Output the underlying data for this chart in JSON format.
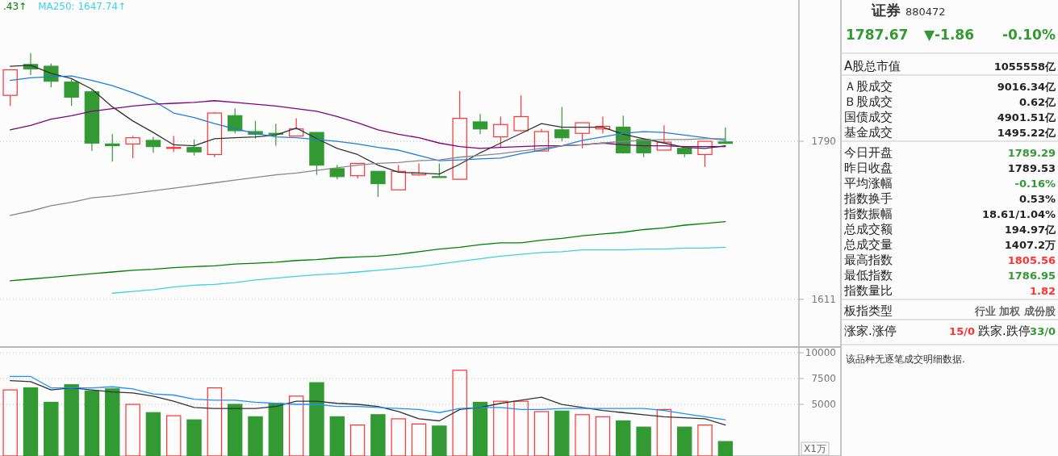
{
  "chart_data": [
    {
      "type": "candlestick",
      "categories": [
        null,
        null,
        null,
        null,
        null,
        null,
        null,
        null,
        null,
        null,
        null,
        null,
        null,
        null,
        null,
        null,
        null,
        null,
        null,
        null,
        null,
        null,
        null,
        null,
        null,
        null,
        null,
        null,
        null,
        null,
        null,
        null,
        null,
        null,
        null,
        null
      ],
      "ohlc": [
        [
          1842,
          1871,
          1830,
          1871
        ],
        [
          1877,
          1890,
          1865,
          1872
        ],
        [
          1875,
          1878,
          1851,
          1858
        ],
        [
          1857,
          1860,
          1830,
          1840
        ],
        [
          1846,
          1848,
          1779,
          1788
        ],
        [
          1787,
          1798,
          1767,
          1785
        ],
        [
          1787,
          1796,
          1771,
          1794
        ],
        [
          1791,
          1795,
          1777,
          1784
        ],
        [
          1782,
          1796,
          1778,
          1783
        ],
        [
          1783,
          1792,
          1774,
          1778
        ],
        [
          1775,
          1823,
          1772,
          1822
        ],
        [
          1819,
          1827,
          1799,
          1802
        ],
        [
          1801,
          1813,
          1793,
          1798
        ],
        [
          1799,
          1810,
          1785,
          1798
        ],
        [
          1796,
          1816,
          1796,
          1804
        ],
        [
          1800,
          1800,
          1752,
          1763
        ],
        [
          1759,
          1763,
          1747,
          1750
        ],
        [
          1751,
          1765,
          1748,
          1765
        ],
        [
          1756,
          1756,
          1727,
          1742
        ],
        [
          1735,
          1763,
          1735,
          1756
        ],
        [
          1752,
          1765,
          1751,
          1754
        ],
        [
          1750,
          1765,
          1749,
          1749
        ],
        [
          1747,
          1847,
          1747,
          1816
        ],
        [
          1812,
          1821,
          1798,
          1804
        ],
        [
          1795,
          1818,
          1783,
          1809
        ],
        [
          1802,
          1842,
          1801,
          1818
        ],
        [
          1779,
          1804,
          1779,
          1801
        ],
        [
          1803,
          1829,
          1790,
          1794
        ],
        [
          1799,
          1811,
          1782,
          1811
        ],
        [
          1804,
          1818,
          1799,
          1807
        ],
        [
          1806,
          1819,
          1776,
          1777
        ],
        [
          1792,
          1793,
          1772,
          1777
        ],
        [
          1780,
          1808,
          1780,
          1789
        ],
        [
          1782,
          1782,
          1772,
          1776
        ],
        [
          1775,
          1790,
          1761,
          1790
        ],
        [
          1789.29,
          1805.56,
          1786.95,
          1787.67
        ]
      ],
      "colors": [
        "#ff3232",
        "#339933",
        "#339933",
        "#339933",
        "#339933",
        "#339933",
        "#ff3232",
        "#339933",
        "#ff3232",
        "#339933",
        "#ff3232",
        "#339933",
        "#339933",
        "#339933",
        "#ff3232",
        "#339933",
        "#339933",
        "#ff3232",
        "#339933",
        "#ff3232",
        "#ff3232",
        "#339933",
        "#ff3232",
        "#339933",
        "#ff3232",
        "#ff3232",
        "#ff3232",
        "#339933",
        "#ff3232",
        "#ff3232",
        "#339933",
        "#339933",
        "#ff3232",
        "#339933",
        "#ff3232",
        "#339933"
      ],
      "series": [
        {
          "type": "line",
          "color": "#333333",
          "values": [
            1875,
            1876,
            1867,
            1861,
            1849,
            1829,
            1813,
            1800,
            1786,
            1785,
            1793,
            1794,
            1795,
            1797,
            1805,
            1793,
            1782,
            1775,
            1763,
            1755,
            1754,
            1753,
            1764,
            1777,
            1788,
            1799,
            1810,
            1806,
            1806,
            1806,
            1798,
            1793,
            1788,
            1783,
            1782,
            1785
          ]
        },
        {
          "type": "line",
          "color": "#1e7fd8",
          "values": [
            1859,
            1862,
            1863,
            1864,
            1859,
            1853,
            1845,
            1836,
            1822,
            1817,
            1810,
            1804,
            1799,
            1795,
            1794,
            1792,
            1790,
            1787,
            1783,
            1780,
            1774,
            1768,
            1769,
            1770,
            1771,
            1776,
            1780,
            1785,
            1791,
            1795,
            1799,
            1801,
            1800,
            1797,
            1794,
            1791
          ]
        },
        {
          "type": "line",
          "color": "#800080",
          "values": [
            1803,
            1808,
            1815,
            1819,
            1824,
            1827,
            1830,
            1832,
            1833,
            1834,
            1836,
            1834,
            1832,
            1830,
            1827,
            1824,
            1818,
            1811,
            1803,
            1798,
            1794,
            1788,
            1784,
            1782,
            1783,
            1784,
            1785,
            1785,
            1786,
            1788,
            1786,
            1785,
            1785,
            1784,
            1784,
            1784
          ]
        },
        {
          "type": "line",
          "color": "#888888",
          "values": [
            1706,
            1711,
            1717,
            1721,
            1726,
            1728,
            1731,
            1734,
            1737,
            1740,
            1743,
            1746,
            1749,
            1752,
            1754,
            1757,
            1760,
            1763,
            1765,
            1766,
            1768,
            1769,
            1772,
            1774,
            1776,
            1779,
            1782,
            1785,
            1786,
            1788,
            1790,
            1791,
            1792,
            1792,
            1793,
            1793
          ]
        },
        {
          "type": "line",
          "color": "#008000",
          "values": [
            1632,
            1634,
            1636,
            1638,
            1640,
            1642,
            1644,
            1645,
            1647,
            1648,
            1649,
            1651,
            1652,
            1653,
            1655,
            1656,
            1658,
            1659,
            1660,
            1662,
            1665,
            1668,
            1670,
            1673,
            1675,
            1675,
            1678,
            1680,
            1683,
            1685,
            1687,
            1690,
            1692,
            1695,
            1697,
            1699
          ]
        },
        {
          "type": "line",
          "color": "#3cd2e6",
          "values": [
            null,
            null,
            null,
            null,
            null,
            1618,
            1620,
            1622,
            1625,
            1627,
            1628,
            1630,
            1633,
            1635,
            1637,
            1639,
            1640,
            1642,
            1644,
            1646,
            1648,
            1651,
            1654,
            1657,
            1660,
            1662,
            1664,
            1665,
            1667,
            1667,
            1667,
            1668,
            1668,
            1669,
            1669,
            1670
          ]
        }
      ],
      "ylim": [
        1557,
        1950
      ],
      "yticks": [
        1790,
        1611
      ],
      "grid": "y",
      "tick_labels": "y",
      "annotations": [
        ".43↑",
        "MA250: 1647.74↑"
      ]
    },
    {
      "type": "bar",
      "categories": [
        null,
        null,
        null,
        null,
        null,
        null,
        null,
        null,
        null,
        null,
        null,
        null,
        null,
        null,
        null,
        null,
        null,
        null,
        null,
        null,
        null,
        null,
        null,
        null,
        null,
        null,
        null,
        null,
        null,
        null,
        null,
        null,
        null,
        null,
        null,
        null
      ],
      "series": [
        {
          "type": "bar",
          "values": [
            6400,
            6600,
            5200,
            6900,
            6300,
            6500,
            5000,
            4200,
            3900,
            3500,
            6600,
            5000,
            3800,
            5100,
            5800,
            7100,
            3800,
            3000,
            4000,
            3600,
            3100,
            2900,
            8300,
            5200,
            5300,
            5300,
            4300,
            4350,
            4000,
            3800,
            3400,
            2800,
            4500,
            2800,
            3000,
            1400
          ],
          "colors": [
            "#ff3232",
            "#339933",
            "#339933",
            "#339933",
            "#339933",
            "#339933",
            "#ff3232",
            "#339933",
            "#ff3232",
            "#339933",
            "#ff3232",
            "#339933",
            "#339933",
            "#339933",
            "#ff3232",
            "#339933",
            "#339933",
            "#ff3232",
            "#339933",
            "#ff3232",
            "#ff3232",
            "#339933",
            "#ff3232",
            "#339933",
            "#ff3232",
            "#ff3232",
            "#ff3232",
            "#339933",
            "#ff3232",
            "#ff3232",
            "#339933",
            "#339933",
            "#ff3232",
            "#339933",
            "#ff3232",
            "#339933"
          ]
        },
        {
          "type": "line",
          "color": "#333333",
          "values": [
            7300,
            7200,
            6400,
            6600,
            6400,
            6200,
            6100,
            5800,
            5300,
            4700,
            4600,
            4600,
            4600,
            4800,
            5300,
            5300,
            5100,
            5000,
            4800,
            4300,
            3600,
            3400,
            4500,
            4700,
            5100,
            5400,
            5700,
            5000,
            4700,
            4400,
            4200,
            4000,
            3800,
            3700,
            3600,
            3000
          ]
        },
        {
          "type": "line",
          "color": "#1e90ff",
          "values": [
            7700,
            7700,
            6600,
            6600,
            6600,
            6700,
            6500,
            6000,
            5900,
            5500,
            5400,
            5400,
            5200,
            5100,
            5000,
            5000,
            4800,
            4800,
            4700,
            4600,
            4500,
            4200,
            4600,
            4700,
            4700,
            4500,
            4500,
            4600,
            4600,
            4600,
            4600,
            4600,
            4400,
            4100,
            3800,
            3500
          ]
        }
      ],
      "ylim": [
        0,
        10550
      ],
      "yticks": [
        10000,
        7500,
        5000
      ],
      "grid": "y",
      "tick_labels": "y",
      "ylabel": "X1万"
    },
    {
      "type": "other",
      "title": "证券",
      "subtitle": "880472",
      "categories": [
        "A股总市值",
        "Ａ股成交",
        "Ｂ股成交",
        "国债成交",
        "基金成交",
        "今日开盘",
        "昨日收盘",
        "平均涨幅",
        "指数换手",
        "指数振幅",
        "总成交额",
        "总成交量",
        "最高指数",
        "最低指数",
        "指数量比",
        "板指类型",
        "涨家.涨停"
      ],
      "value_labels": [
        "1055558亿",
        "9016.34亿",
        "0.62亿",
        "4901.51亿",
        "1495.22亿",
        "1789.29",
        "1789.53",
        "-0.16%",
        "0.53%",
        "18.61/1.04%",
        "194.97亿",
        "1407.2万",
        "1805.56",
        "1786.95",
        "1.82",
        "行业 加权 成份股",
        "15/0"
      ],
      "colors": [
        "#222222",
        "#222222",
        "#222222",
        "#222222",
        "#222222",
        "#339933",
        "#222222",
        "#339933",
        "#222222",
        "#222222",
        "#222222",
        "#222222",
        "#ff3232",
        "#339933",
        "#ff3232",
        "#666666",
        "#ff3232"
      ],
      "annotations": [
        "1787.67",
        "▼-1.86",
        "-0.10%",
        "跌家.跌停",
        "33/0",
        "该品种无逐笔成交明细数据."
      ]
    }
  ]
}
